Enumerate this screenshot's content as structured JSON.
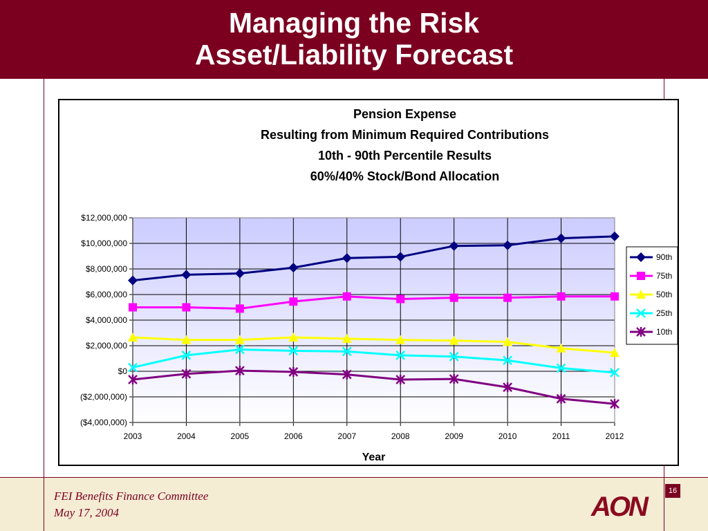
{
  "slide": {
    "title_line1": "Managing the Risk",
    "title_line2": "Asset/Liability Forecast",
    "footer_line1": "FEI Benefits Finance Committee",
    "footer_line2": "May 17, 2004",
    "page_number": "16",
    "logo_text": "AON"
  },
  "colors": {
    "header_bg": "#7b0020",
    "footer_bg": "#f5ecd4",
    "plot_area": "#ccccff"
  },
  "chart_data": {
    "type": "line",
    "title_lines": [
      "Pension Expense",
      "Resulting from Minimum Required Contributions",
      "10th - 90th Percentile Results",
      "60%/40% Stock/Bond Allocation"
    ],
    "xlabel": "Year",
    "ylabel": "",
    "x": [
      "2003",
      "2004",
      "2005",
      "2006",
      "2007",
      "2008",
      "2009",
      "2010",
      "2011",
      "2012"
    ],
    "ylim": [
      -4000000,
      12000000
    ],
    "yticks": [
      12000000,
      10000000,
      8000000,
      6000000,
      4000000,
      2000000,
      0,
      -2000000,
      -4000000
    ],
    "ytick_labels": [
      "$12,000,000",
      "$10,000,000",
      "$8,000,000",
      "$6,000,000",
      "$4,000,000",
      "$2,000,000",
      "$0",
      "($2,000,000)",
      "($4,000,000)"
    ],
    "grid": true,
    "legend_position": "right",
    "series": [
      {
        "name": "90th",
        "color": "#000080",
        "marker": "diamond",
        "values": [
          7100000,
          7550000,
          7650000,
          8100000,
          8850000,
          8950000,
          9800000,
          9850000,
          10400000,
          10550000
        ]
      },
      {
        "name": "75th",
        "color": "#ff00ff",
        "marker": "square",
        "values": [
          5000000,
          5000000,
          4900000,
          5450000,
          5850000,
          5650000,
          5750000,
          5750000,
          5850000,
          5850000
        ]
      },
      {
        "name": "50th",
        "color": "#ffff00",
        "marker": "triangle",
        "values": [
          2650000,
          2450000,
          2450000,
          2650000,
          2550000,
          2450000,
          2400000,
          2300000,
          1800000,
          1450000
        ]
      },
      {
        "name": "25th",
        "color": "#00ffff",
        "marker": "x",
        "values": [
          300000,
          1250000,
          1700000,
          1600000,
          1550000,
          1250000,
          1150000,
          850000,
          250000,
          -100000
        ]
      },
      {
        "name": "10th",
        "color": "#800080",
        "marker": "star",
        "values": [
          -650000,
          -200000,
          50000,
          -50000,
          -250000,
          -650000,
          -600000,
          -1250000,
          -2150000,
          -2550000
        ]
      }
    ]
  }
}
